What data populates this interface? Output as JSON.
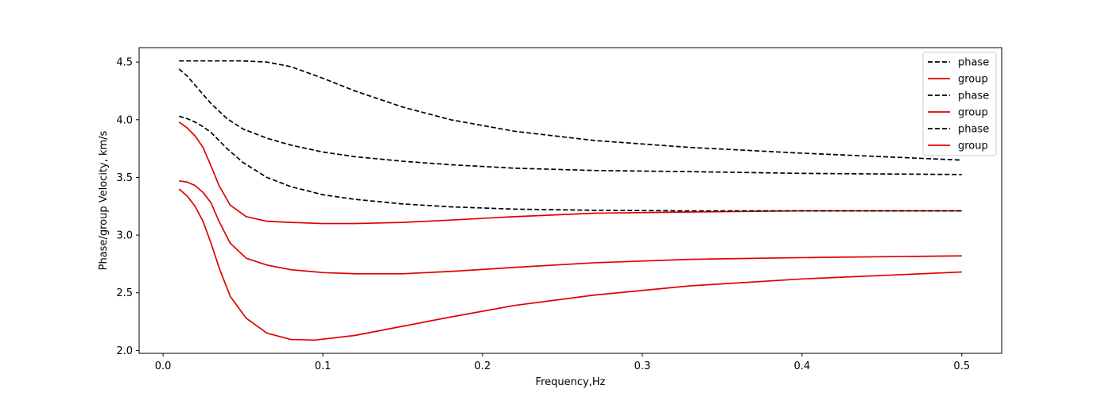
{
  "chart_data": {
    "type": "line",
    "title": "",
    "xlabel": "Frequency,Hz",
    "ylabel": "Phase/group Velocity, km/s",
    "xlim": [
      -0.015,
      0.525
    ],
    "ylim": [
      1.975,
      4.625
    ],
    "xticks": [
      "0.0",
      "0.1",
      "0.2",
      "0.3",
      "0.4",
      "0.5"
    ],
    "yticks": [
      "2.0",
      "2.5",
      "3.0",
      "3.5",
      "4.0",
      "4.5"
    ],
    "grid": false,
    "legend_position": "top-right",
    "series": [
      {
        "name": "phase",
        "style": "dashed",
        "color": "#000000",
        "x": [
          0.01,
          0.02,
          0.03,
          0.04,
          0.05,
          0.065,
          0.08,
          0.1,
          0.12,
          0.15,
          0.18,
          0.22,
          0.27,
          0.33,
          0.4,
          0.5
        ],
        "y": [
          4.51,
          4.51,
          4.51,
          4.51,
          4.51,
          4.5,
          4.46,
          4.36,
          4.25,
          4.11,
          4.0,
          3.9,
          3.82,
          3.76,
          3.71,
          3.65
        ]
      },
      {
        "name": "group",
        "style": "solid",
        "color": "#e00000",
        "x": [
          0.01,
          0.015,
          0.02,
          0.025,
          0.03,
          0.035,
          0.042,
          0.052,
          0.065,
          0.08,
          0.1,
          0.12,
          0.15,
          0.18,
          0.22,
          0.27,
          0.33,
          0.4,
          0.5
        ],
        "y": [
          3.98,
          3.93,
          3.86,
          3.76,
          3.6,
          3.43,
          3.26,
          3.16,
          3.12,
          3.11,
          3.1,
          3.1,
          3.11,
          3.13,
          3.16,
          3.19,
          3.2,
          3.21,
          3.21
        ]
      },
      {
        "name": "phase",
        "style": "dashed",
        "color": "#000000",
        "x": [
          0.01,
          0.015,
          0.02,
          0.03,
          0.04,
          0.05,
          0.065,
          0.08,
          0.1,
          0.12,
          0.15,
          0.18,
          0.22,
          0.27,
          0.33,
          0.4,
          0.5
        ],
        "y": [
          4.44,
          4.38,
          4.3,
          4.14,
          4.01,
          3.92,
          3.84,
          3.78,
          3.72,
          3.68,
          3.64,
          3.61,
          3.58,
          3.56,
          3.55,
          3.535,
          3.525
        ]
      },
      {
        "name": "group",
        "style": "solid",
        "color": "#e00000",
        "x": [
          0.01,
          0.015,
          0.02,
          0.025,
          0.03,
          0.035,
          0.042,
          0.052,
          0.065,
          0.08,
          0.1,
          0.12,
          0.15,
          0.18,
          0.22,
          0.27,
          0.33,
          0.4,
          0.5
        ],
        "y": [
          3.47,
          3.46,
          3.43,
          3.37,
          3.28,
          3.12,
          2.93,
          2.8,
          2.74,
          2.7,
          2.675,
          2.665,
          2.665,
          2.685,
          2.72,
          2.76,
          2.79,
          2.805,
          2.82
        ]
      },
      {
        "name": "phase",
        "style": "dashed",
        "color": "#000000",
        "x": [
          0.01,
          0.015,
          0.02,
          0.025,
          0.03,
          0.04,
          0.05,
          0.065,
          0.08,
          0.1,
          0.12,
          0.15,
          0.18,
          0.22,
          0.27,
          0.33,
          0.4,
          0.5
        ],
        "y": [
          4.03,
          4.01,
          3.98,
          3.94,
          3.89,
          3.75,
          3.63,
          3.5,
          3.42,
          3.35,
          3.31,
          3.27,
          3.245,
          3.225,
          3.215,
          3.21,
          3.21,
          3.21
        ]
      },
      {
        "name": "group",
        "style": "solid",
        "color": "#e00000",
        "x": [
          0.01,
          0.015,
          0.02,
          0.025,
          0.03,
          0.035,
          0.042,
          0.052,
          0.065,
          0.08,
          0.095,
          0.12,
          0.15,
          0.18,
          0.22,
          0.27,
          0.33,
          0.4,
          0.5
        ],
        "y": [
          3.4,
          3.34,
          3.25,
          3.12,
          2.93,
          2.72,
          2.47,
          2.28,
          2.15,
          2.095,
          2.09,
          2.13,
          2.21,
          2.29,
          2.39,
          2.48,
          2.56,
          2.62,
          2.68
        ]
      }
    ]
  }
}
